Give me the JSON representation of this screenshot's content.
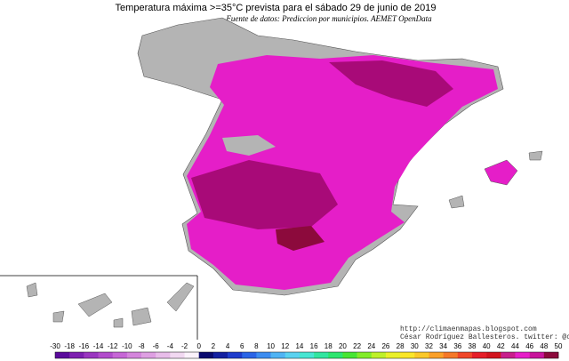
{
  "header": {
    "title": "Temperatura máxima >=35°C prevista para el sábado 29 de junio de 2019",
    "subtitle": "Fuente de datos: Prediccion por municipios. AEMET OpenData"
  },
  "credits": [
    "http://climaenmapas.blogspot.com",
    "César Rodríguez Ballesteros. twitter: @cballesteros"
  ],
  "colorbar": {
    "ticks": [
      -30,
      -18,
      -16,
      -14,
      -12,
      -10,
      -8,
      -6,
      -4,
      -2,
      0,
      2,
      4,
      6,
      8,
      10,
      12,
      14,
      16,
      18,
      20,
      22,
      24,
      26,
      28,
      30,
      32,
      34,
      36,
      38,
      40,
      42,
      44,
      46,
      48,
      50
    ],
    "colors": [
      "#5a0a9c",
      "#7d1fb0",
      "#9a36c0",
      "#b24ccc",
      "#c666d6",
      "#d485dc",
      "#de9fe2",
      "#e8bce9",
      "#f1d8f1",
      "#fbf2fb",
      "#0a0a6e",
      "#1420a0",
      "#1e3ccc",
      "#2a64e6",
      "#3c8cf0",
      "#50b4f4",
      "#5ad2f0",
      "#46e6d2",
      "#32e6a0",
      "#2ce66e",
      "#46e632",
      "#82ec28",
      "#bef028",
      "#eaf028",
      "#fae628",
      "#fac828",
      "#faa028",
      "#f57828",
      "#f04628",
      "#e61e28",
      "#d2141e",
      "#c81e8c",
      "#e61ec8",
      "#c8149b",
      "#8c0a3c"
    ]
  }
}
